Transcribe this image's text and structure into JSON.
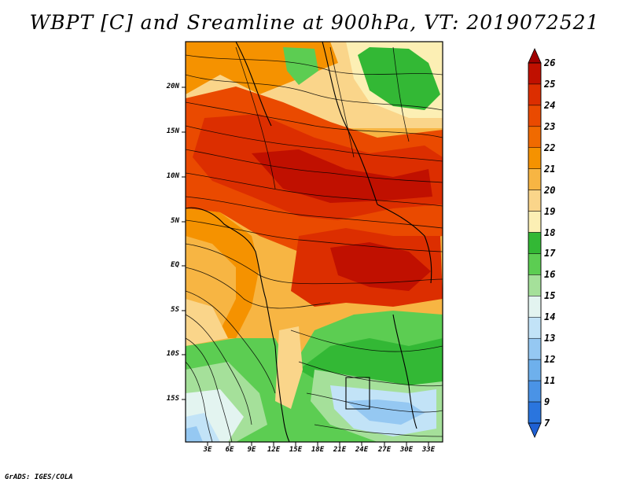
{
  "title": "WBPT [C] and Sreamline at 900hPa, VT: 2019072521",
  "credit": "GrADS: IGES/COLA",
  "lat_labels": [
    "20N",
    "15N",
    "10N",
    "5N",
    "EQ",
    "5S",
    "10S",
    "15S"
  ],
  "lon_labels": [
    "3E",
    "6E",
    "9E",
    "12E",
    "15E",
    "18E",
    "21E",
    "24E",
    "27E",
    "30E",
    "33E"
  ],
  "colorbar": {
    "labels": [
      "26",
      "25",
      "24",
      "23",
      "22",
      "21",
      "20",
      "19",
      "18",
      "17",
      "16",
      "15",
      "14",
      "13",
      "12",
      "11",
      "9",
      "7"
    ],
    "colors": [
      "#a00000",
      "#c01000",
      "#dc2e00",
      "#ea4a00",
      "#f06a00",
      "#f59200",
      "#f7b543",
      "#fad58a",
      "#fcefb4",
      "#33b835",
      "#5ccd52",
      "#a5e09a",
      "#e3f4f0",
      "#c2e3f7",
      "#95c8f2",
      "#6eb0ec",
      "#4a93e6",
      "#2a75de",
      "#1e60d4"
    ]
  }
}
